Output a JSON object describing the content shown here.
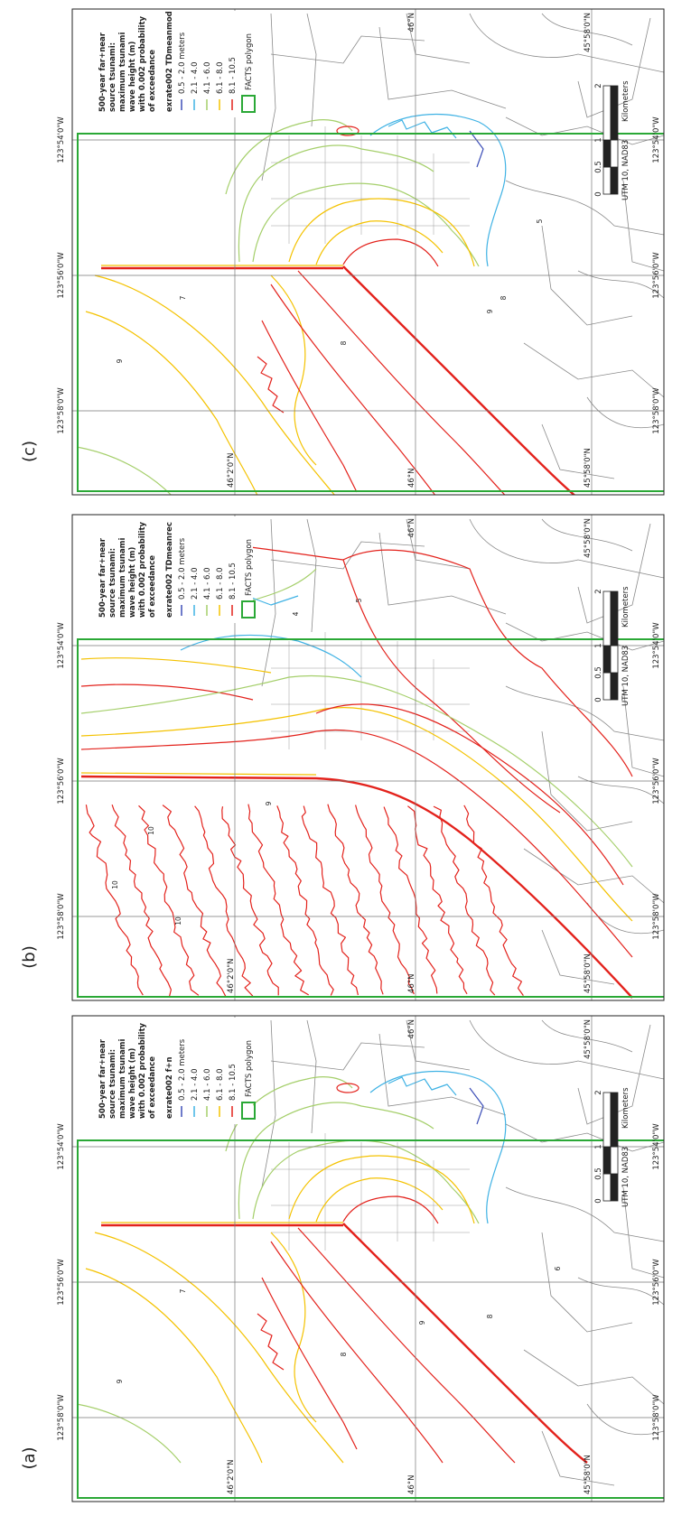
{
  "panels": [
    {
      "label": "(a)",
      "legend": {
        "title": [
          "500-year far+near",
          "source tsunami:",
          "maximum tsunami",
          "wave height (m)",
          "with 0.002 probability",
          "of exceedance"
        ],
        "run": "exrate002 f+n",
        "items": [
          {
            "label": "0.5 - 2.0 meters",
            "color": "#3d4fb8"
          },
          {
            "label": "2.1 - 4.0",
            "color": "#3fb2e4"
          },
          {
            "label": "4.1 - 6.0",
            "color": "#a5cf6b"
          },
          {
            "label": "6.1 - 8.0",
            "color": "#f4c200"
          },
          {
            "label": "8.1 - 10.5",
            "color": "#e3221c"
          },
          {
            "label": "FACTS polygon",
            "color": "#2aa836"
          }
        ]
      },
      "lon_left": [
        "123°58'0\"W",
        "123°56'0\"W",
        "123°54'0\"W"
      ],
      "lon_right": [
        "123°58'0\"W",
        "123°56'0\"W",
        "123°54'0\"W"
      ],
      "lat_top": [
        "46°N",
        "45°58'0\"N"
      ],
      "lat_bottom": [
        "46°2'0\"N",
        "46°N",
        "45°58'0\"N"
      ],
      "scale": {
        "labels": [
          "0",
          "0.5",
          "1",
          "2"
        ],
        "unit": "Kilometers"
      },
      "datum": "UTM 10, NAD83",
      "contour_labels": [
        "7",
        "9",
        "8",
        "8",
        "9",
        "6"
      ]
    },
    {
      "label": "(b)",
      "legend": {
        "title": [
          "500-year far+near",
          "source tsunami:",
          "maximum tsunami",
          "wave height (m)",
          "with 0.002 probability",
          "of exceedance"
        ],
        "run": "exrate002 TDmeanrec",
        "items": [
          {
            "label": "0.5 - 2.0 meters",
            "color": "#3d4fb8"
          },
          {
            "label": "2.1 - 4.0",
            "color": "#3fb2e4"
          },
          {
            "label": "4.1 - 6.0",
            "color": "#a5cf6b"
          },
          {
            "label": "6.1 - 8.0",
            "color": "#f4c200"
          },
          {
            "label": "8.1 - 10.5",
            "color": "#e3221c"
          },
          {
            "label": "FACTS polygon",
            "color": "#2aa836"
          }
        ]
      },
      "lon_left": [
        "123°58'0\"W",
        "123°56'0\"W",
        "123°54'0\"W"
      ],
      "lon_right": [
        "123°58'0\"W",
        "123°56'0\"W",
        "123°54'0\"W"
      ],
      "lat_top": [
        "46°N",
        "45°58'0\"N"
      ],
      "lat_bottom": [
        "46°2'0\"N",
        "46°N",
        "45°58'0\"N"
      ],
      "scale": {
        "labels": [
          "0",
          "0.5",
          "1",
          "2"
        ],
        "unit": "Kilometers"
      },
      "datum": "UTM 10, NAD83",
      "contour_labels": [
        "10",
        "10",
        "10",
        "9",
        "5",
        "4"
      ]
    },
    {
      "label": "(c)",
      "legend": {
        "title": [
          "500-year far+near",
          "source tsunami:",
          "maximum tsunami",
          "wave height (m)",
          "with 0.002 probability",
          "of exceedance"
        ],
        "run": "exrate002 TDmeanmod",
        "items": [
          {
            "label": "0.5 - 2.0 meters",
            "color": "#3d4fb8"
          },
          {
            "label": "2.1 - 4.0",
            "color": "#3fb2e4"
          },
          {
            "label": "4.1 - 6.0",
            "color": "#a5cf6b"
          },
          {
            "label": "6.1 - 8.0",
            "color": "#f4c200"
          },
          {
            "label": "8.1 - 10.5",
            "color": "#e3221c"
          },
          {
            "label": "FACTS polygon",
            "color": "#2aa836"
          }
        ]
      },
      "lon_left": [
        "123°58'0\"W",
        "123°56'0\"W",
        "123°54'0\"W"
      ],
      "lon_right": [
        "123°58'0\"W",
        "123°56'0\"W",
        "123°54'0\"W"
      ],
      "lat_top": [
        "46°N",
        "45°58'0\"N"
      ],
      "lat_bottom": [
        "46°2'0\"N",
        "46°N",
        "45°58'0\"N"
      ],
      "scale": {
        "labels": [
          "0",
          "0.5",
          "1",
          "2"
        ],
        "unit": "Kilometers"
      },
      "datum": "UTM 10, NAD83",
      "contour_labels": [
        "7",
        "9",
        "8",
        "9",
        "8",
        "5"
      ]
    }
  ]
}
